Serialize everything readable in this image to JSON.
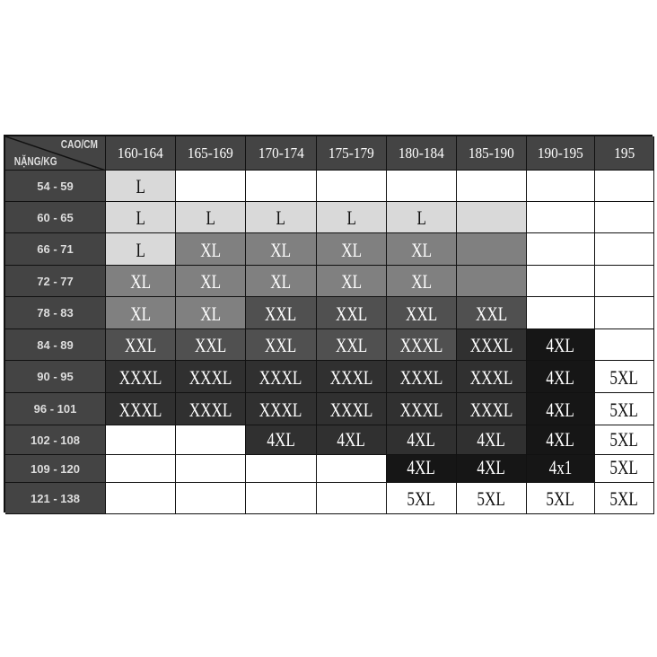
{
  "corner": {
    "top": "CAO/CM",
    "bottom": "NẶNG/KG"
  },
  "columns": [
    "160-164",
    "165-169",
    "170-174",
    "175-179",
    "180-184",
    "185-190",
    "190-195",
    "195"
  ],
  "shade_colors": {
    "w": "#ffffff",
    "l": "#d9d9d9",
    "m": "#808080",
    "d": "#505050",
    "dd": "#303030",
    "b": "#161616",
    "header": "#444444"
  },
  "rows": [
    {
      "label": "54 - 59",
      "cells": [
        {
          "t": "L",
          "s": "l"
        },
        {
          "t": "",
          "s": "w"
        },
        {
          "t": "",
          "s": "w"
        },
        {
          "t": "",
          "s": "w"
        },
        {
          "t": "",
          "s": "w"
        },
        {
          "t": "",
          "s": "w"
        },
        {
          "t": "",
          "s": "w"
        },
        {
          "t": "",
          "s": "w"
        }
      ]
    },
    {
      "label": "60 - 65",
      "cells": [
        {
          "t": "L",
          "s": "l"
        },
        {
          "t": "L",
          "s": "l"
        },
        {
          "t": "L",
          "s": "l"
        },
        {
          "t": "L",
          "s": "l"
        },
        {
          "t": "L",
          "s": "l"
        },
        {
          "t": "",
          "s": "l"
        },
        {
          "t": "",
          "s": "w"
        },
        {
          "t": "",
          "s": "w"
        }
      ]
    },
    {
      "label": "66 - 71",
      "cells": [
        {
          "t": "L",
          "s": "l"
        },
        {
          "t": "XL",
          "s": "m"
        },
        {
          "t": "XL",
          "s": "m"
        },
        {
          "t": "XL",
          "s": "m"
        },
        {
          "t": "XL",
          "s": "m"
        },
        {
          "t": "",
          "s": "m"
        },
        {
          "t": "",
          "s": "w"
        },
        {
          "t": "",
          "s": "w"
        }
      ]
    },
    {
      "label": "72 - 77",
      "cells": [
        {
          "t": "XL",
          "s": "m"
        },
        {
          "t": "XL",
          "s": "m"
        },
        {
          "t": "XL",
          "s": "m"
        },
        {
          "t": "XL",
          "s": "m"
        },
        {
          "t": "XL",
          "s": "m"
        },
        {
          "t": "",
          "s": "m"
        },
        {
          "t": "",
          "s": "w"
        },
        {
          "t": "",
          "s": "w"
        }
      ]
    },
    {
      "label": "78 - 83",
      "cells": [
        {
          "t": "XL",
          "s": "m"
        },
        {
          "t": "XL",
          "s": "m"
        },
        {
          "t": "XXL",
          "s": "d"
        },
        {
          "t": "XXL",
          "s": "d"
        },
        {
          "t": "XXL",
          "s": "d"
        },
        {
          "t": "XXL",
          "s": "d"
        },
        {
          "t": "",
          "s": "w"
        },
        {
          "t": "",
          "s": "w"
        }
      ]
    },
    {
      "label": "84 - 89",
      "cells": [
        {
          "t": "XXL",
          "s": "d"
        },
        {
          "t": "XXL",
          "s": "d"
        },
        {
          "t": "XXL",
          "s": "d"
        },
        {
          "t": "XXL",
          "s": "d"
        },
        {
          "t": "XXXL",
          "s": "d"
        },
        {
          "t": "XXXL",
          "s": "dd"
        },
        {
          "t": "4XL",
          "s": "b"
        },
        {
          "t": "",
          "s": "w"
        }
      ]
    },
    {
      "label": "90 - 95",
      "cells": [
        {
          "t": "XXXL",
          "s": "dd"
        },
        {
          "t": "XXXL",
          "s": "dd"
        },
        {
          "t": "XXXL",
          "s": "dd"
        },
        {
          "t": "XXXL",
          "s": "dd"
        },
        {
          "t": "XXXL",
          "s": "dd"
        },
        {
          "t": "XXXL",
          "s": "dd"
        },
        {
          "t": "4XL",
          "s": "b"
        },
        {
          "t": "5XL",
          "s": "w"
        }
      ]
    },
    {
      "label": "96 - 101",
      "cells": [
        {
          "t": "XXXL",
          "s": "dd"
        },
        {
          "t": "XXXL",
          "s": "dd"
        },
        {
          "t": "XXXL",
          "s": "dd"
        },
        {
          "t": "XXXL",
          "s": "dd"
        },
        {
          "t": "XXXL",
          "s": "dd"
        },
        {
          "t": "XXXL",
          "s": "dd"
        },
        {
          "t": "4XL",
          "s": "b"
        },
        {
          "t": "5XL",
          "s": "w"
        }
      ]
    },
    {
      "label": "102 - 108",
      "cells": [
        {
          "t": "",
          "s": "w"
        },
        {
          "t": "",
          "s": "w"
        },
        {
          "t": "4XL",
          "s": "dd"
        },
        {
          "t": "4XL",
          "s": "dd"
        },
        {
          "t": "4XL",
          "s": "dd"
        },
        {
          "t": "4XL",
          "s": "dd"
        },
        {
          "t": "4XL",
          "s": "b"
        },
        {
          "t": "5XL",
          "s": "w"
        }
      ]
    },
    {
      "label": "109 - 120",
      "cells": [
        {
          "t": "",
          "s": "w"
        },
        {
          "t": "",
          "s": "w"
        },
        {
          "t": "",
          "s": "w"
        },
        {
          "t": "",
          "s": "w"
        },
        {
          "t": "4XL",
          "s": "b"
        },
        {
          "t": "4XL",
          "s": "b"
        },
        {
          "t": "4x1",
          "s": "b"
        },
        {
          "t": "5XL",
          "s": "w"
        }
      ]
    },
    {
      "label": "121 - 138",
      "cells": [
        {
          "t": "",
          "s": "w"
        },
        {
          "t": "",
          "s": "w"
        },
        {
          "t": "",
          "s": "w"
        },
        {
          "t": "",
          "s": "w"
        },
        {
          "t": "5XL",
          "s": "w"
        },
        {
          "t": "5XL",
          "s": "w"
        },
        {
          "t": "5XL",
          "s": "w"
        },
        {
          "t": "5XL",
          "s": "w"
        }
      ]
    }
  ]
}
